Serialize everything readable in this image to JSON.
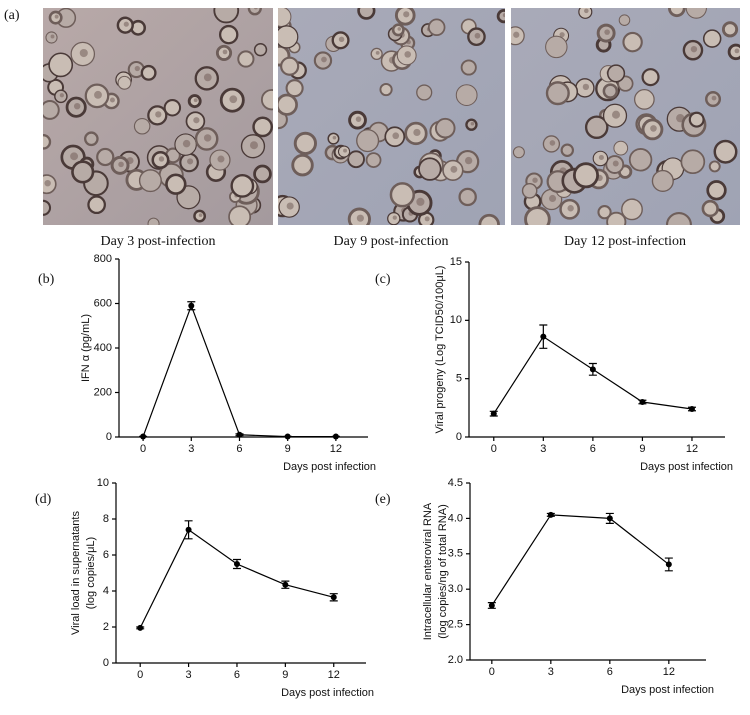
{
  "panel_a": {
    "label": "(a)",
    "images": [
      {
        "caption": "Day 3 post-infection"
      },
      {
        "caption": "Day 9 post-infection"
      },
      {
        "caption": "Day 12 post-infection"
      }
    ]
  },
  "chart_data": [
    {
      "type": "line",
      "panel": "(b)",
      "ylabel": "IFN α (pg/mL)",
      "xlabel": "Days post infection",
      "x": [
        0,
        3,
        6,
        9,
        12
      ],
      "values": [
        2,
        590,
        10,
        2,
        2
      ],
      "errors": [
        1,
        18,
        4,
        1,
        1
      ],
      "color": "#000000",
      "xlim": [
        -1.5,
        14
      ],
      "xticks": [
        0,
        3,
        6,
        9,
        12
      ],
      "ylim": [
        0,
        800
      ],
      "yticks": [
        0,
        200,
        400,
        600,
        800
      ]
    },
    {
      "type": "line",
      "panel": "(c)",
      "ylabel": "Viral progeny (Log TCID50/100μL)",
      "xlabel": "Days post infection",
      "x": [
        0,
        3,
        6,
        9,
        12
      ],
      "values": [
        2.0,
        8.6,
        5.8,
        3.0,
        2.4
      ],
      "errors": [
        0.2,
        1.0,
        0.5,
        0.15,
        0.15
      ],
      "color": "#000000",
      "xlim": [
        -1.5,
        14
      ],
      "xticks": [
        0,
        3,
        6,
        9,
        12
      ],
      "ylim": [
        0,
        15
      ],
      "yticks": [
        0,
        5,
        10,
        15
      ]
    },
    {
      "type": "line",
      "panel": "(d)",
      "ylabel": [
        "Viral load in supernatants",
        "(log copies/μL)"
      ],
      "xlabel": "Days post infection",
      "x": [
        0,
        3,
        6,
        9,
        12
      ],
      "values": [
        1.95,
        7.4,
        5.5,
        4.35,
        3.65
      ],
      "errors": [
        0.05,
        0.5,
        0.25,
        0.2,
        0.2
      ],
      "color": "#000000",
      "xlim": [
        -1.5,
        14
      ],
      "xticks": [
        0,
        3,
        6,
        9,
        12
      ],
      "ylim": [
        0,
        10
      ],
      "yticks": [
        0,
        2,
        4,
        6,
        8,
        10
      ]
    },
    {
      "type": "line",
      "panel": "(e)",
      "ylabel": [
        "Intracellular enteroviral RNA",
        "(log copies/ng of total RNA)"
      ],
      "xlabel": "Days post infection",
      "categories": [
        "0",
        "3",
        "6",
        "12"
      ],
      "values": [
        2.77,
        4.05,
        4.0,
        3.35
      ],
      "errors": [
        0.04,
        0.02,
        0.07,
        0.09
      ],
      "color": "#000000",
      "ylim": [
        2.0,
        4.5
      ],
      "yticks": [
        {
          "value": 2,
          "label": "2.0"
        },
        2.5,
        {
          "value": 3,
          "label": "3.0"
        },
        3.5,
        {
          "value": 4,
          "label": "4.0"
        },
        4.5
      ]
    }
  ]
}
